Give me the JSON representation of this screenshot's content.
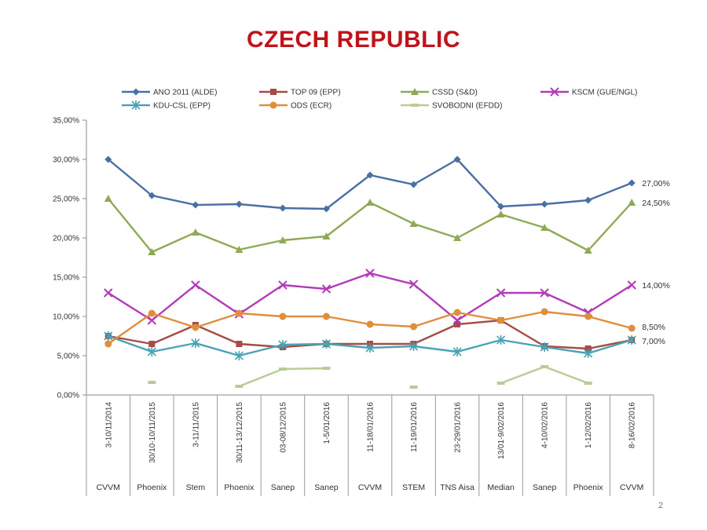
{
  "slide": {
    "title": "CZECH REPUBLIC",
    "page_number": "2"
  },
  "chart_data": {
    "type": "line",
    "title": "CZECH REPUBLIC",
    "xlabel": "",
    "ylabel": "",
    "ylim": [
      0,
      35
    ],
    "y_ticks": [
      "0,00%",
      "5,00%",
      "10,00%",
      "15,00%",
      "20,00%",
      "25,00%",
      "30,00%",
      "35,00%"
    ],
    "categories": [
      "3-10/11/2014",
      "30/10-10/11/2015",
      "3-11/11/2015",
      "30/11-13/12/2015",
      "03-08/12/2015",
      "1-5/01/2016",
      "11-18/01/2016",
      "11-19/01/2016",
      "23-29/01/2016",
      "13/01-9/02/2016",
      "4-10/02/2016",
      "1-12/02/2016",
      "8-16/02/2016"
    ],
    "sources": [
      "CVVM",
      "Phoenix",
      "Stem",
      "Phoenix",
      "Sanep",
      "Sanep",
      "CVVM",
      "STEM",
      "TNS Aisa",
      "Median",
      "Sanep",
      "Phoenix",
      "CVVM"
    ],
    "grid": false,
    "legend_position": "top",
    "series": [
      {
        "name": "ANO 2011 (ALDE)",
        "color": "#4a6fa5",
        "marker": "diamond",
        "values": [
          30.0,
          25.4,
          24.2,
          24.3,
          23.8,
          23.7,
          28.0,
          26.8,
          30.0,
          24.0,
          24.3,
          24.8,
          27.0
        ]
      },
      {
        "name": "TOP 09 (EPP)",
        "color": "#a64b45",
        "marker": "square",
        "values": [
          7.5,
          6.5,
          8.9,
          6.5,
          6.1,
          6.5,
          6.5,
          6.5,
          9.0,
          9.5,
          6.2,
          5.9,
          7.0
        ]
      },
      {
        "name": "CSSD (S&D)",
        "color": "#8faa55",
        "marker": "triangle",
        "values": [
          25.0,
          18.2,
          20.7,
          18.5,
          19.7,
          20.2,
          24.5,
          21.8,
          20.0,
          23.0,
          21.3,
          18.4,
          24.5
        ]
      },
      {
        "name": "KSCM (GUE/NGL)",
        "color": "#b33ab8",
        "marker": "x",
        "values": [
          13.0,
          9.5,
          14.0,
          10.3,
          14.0,
          13.5,
          15.5,
          14.1,
          9.5,
          13.0,
          13.0,
          10.5,
          14.0
        ]
      },
      {
        "name": "KDU-CSL (EPP)",
        "color": "#4aa3b4",
        "marker": "star",
        "values": [
          7.5,
          5.5,
          6.6,
          5.0,
          6.4,
          6.5,
          6.0,
          6.2,
          5.5,
          7.0,
          6.1,
          5.3,
          7.0
        ]
      },
      {
        "name": "ODS (ECR)",
        "color": "#e08e3c",
        "marker": "circle",
        "values": [
          6.5,
          10.4,
          8.6,
          10.4,
          10.0,
          10.0,
          9.0,
          8.7,
          10.5,
          9.5,
          10.6,
          10.0,
          8.5
        ]
      },
      {
        "name": "SVOBODNI (EFDD)",
        "color": "#b9cc96",
        "marker": "dash",
        "values": [
          null,
          1.6,
          null,
          1.1,
          3.3,
          3.4,
          null,
          1.0,
          null,
          1.5,
          3.6,
          1.5,
          null
        ]
      }
    ],
    "end_labels": [
      {
        "series": "ANO 2011 (ALDE)",
        "text": "27,00%"
      },
      {
        "series": "CSSD (S&D)",
        "text": "24,50%"
      },
      {
        "series": "KSCM (GUE/NGL)",
        "text": "14,00%"
      },
      {
        "series": "ODS (ECR)",
        "text": "8,50%"
      },
      {
        "series": "TOP 09 (EPP)",
        "text": "7,00%"
      }
    ]
  }
}
